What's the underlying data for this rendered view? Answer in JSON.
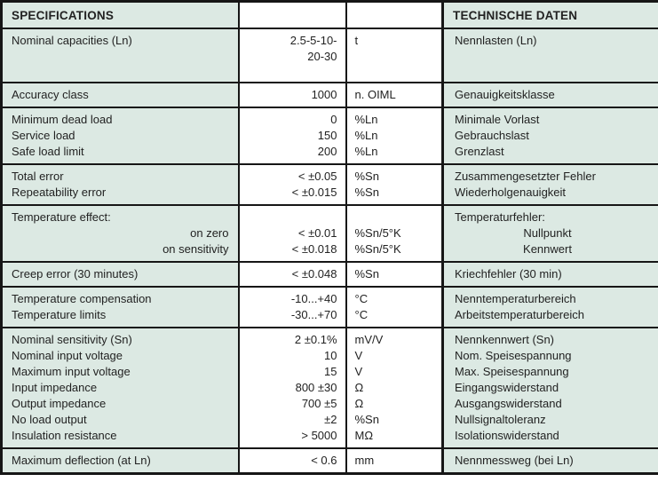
{
  "document": {
    "type": "load-cell specification datasheet table",
    "colors": {
      "cell_green": "#dce9e3",
      "cell_white": "#ffffff",
      "border_black": "#161616",
      "text": "#222222"
    }
  },
  "table": {
    "header": {
      "specifications_label": "SPECIFICATIONS",
      "value_col_label": "",
      "unit_col_label": "",
      "technische_daten_label": "TECHNISCHE DATEN"
    },
    "groups": [
      {
        "en": [
          "Nominal capacities (Ln)"
        ],
        "value": [
          "2.5-5-10-",
          "20-30"
        ],
        "unit": [
          "t"
        ],
        "de": [
          "Nennlasten (Ln)"
        ]
      },
      {
        "en": [
          "Accuracy class"
        ],
        "value": [
          "1000"
        ],
        "unit": [
          "n. OIML"
        ],
        "de": [
          "Genauigkeitsklasse"
        ]
      },
      {
        "en": [
          "Minimum dead load",
          "Service load",
          "Safe load limit"
        ],
        "value": [
          "0",
          "150",
          "200"
        ],
        "unit": [
          "%Ln",
          "%Ln",
          "%Ln"
        ],
        "de": [
          "Minimale Vorlast",
          "Gebrauchslast",
          "Grenzlast"
        ]
      },
      {
        "en": [
          "Total error",
          "Repeatability error"
        ],
        "value": [
          "< ±0.05",
          "< ±0.015"
        ],
        "unit": [
          "%Sn",
          "%Sn"
        ],
        "de": [
          "Zusammengesetzter Fehler",
          "Wiederholgenauigkeit"
        ]
      },
      {
        "en": [
          "Temperature effect:",
          {
            "text": "on zero",
            "align": "right"
          },
          {
            "text": "on sensitivity",
            "align": "right"
          }
        ],
        "value": [
          "",
          "< ±0.01",
          "< ±0.018"
        ],
        "unit": [
          "",
          "%Sn/5°K",
          "%Sn/5°K"
        ],
        "de": [
          "Temperaturfehler:",
          {
            "text": "Nullpunkt",
            "align": "center"
          },
          {
            "text": "Kennwert",
            "align": "center"
          }
        ]
      },
      {
        "en": [
          "Creep error (30 minutes)"
        ],
        "value": [
          "< ±0.048"
        ],
        "unit": [
          "%Sn"
        ],
        "de": [
          "Kriechfehler (30 min)"
        ]
      },
      {
        "en": [
          "Temperature compensation",
          "Temperature limits"
        ],
        "value": [
          "-10...+40",
          "-30...+70"
        ],
        "unit": [
          "°C",
          "°C"
        ],
        "de": [
          "Nenntemperaturbereich",
          "Arbeitstemperaturbereich"
        ]
      },
      {
        "en": [
          "Nominal sensitivity (Sn)",
          "Nominal input voltage",
          "Maximum input voltage",
          "Input impedance",
          "Output impedance",
          "No load output",
          "Insulation resistance"
        ],
        "value": [
          "2 ±0.1%",
          "10",
          "15",
          "800 ±30",
          "700 ±5",
          "±2",
          "> 5000"
        ],
        "unit": [
          "mV/V",
          "V",
          "V",
          "Ω",
          "Ω",
          "%Sn",
          "MΩ"
        ],
        "de": [
          "Nennkennwert (Sn)",
          "Nom. Speisespannung",
          "Max. Speisespannung",
          "Eingangswiderstand",
          "Ausgangswiderstand",
          "Nullsignaltoleranz",
          "Isolationswiderstand"
        ]
      },
      {
        "en": [
          "Maximum deflection (at Ln)"
        ],
        "value": [
          "< 0.6"
        ],
        "unit": [
          "mm"
        ],
        "de": [
          "Nennmessweg (bei Ln)"
        ]
      }
    ]
  }
}
